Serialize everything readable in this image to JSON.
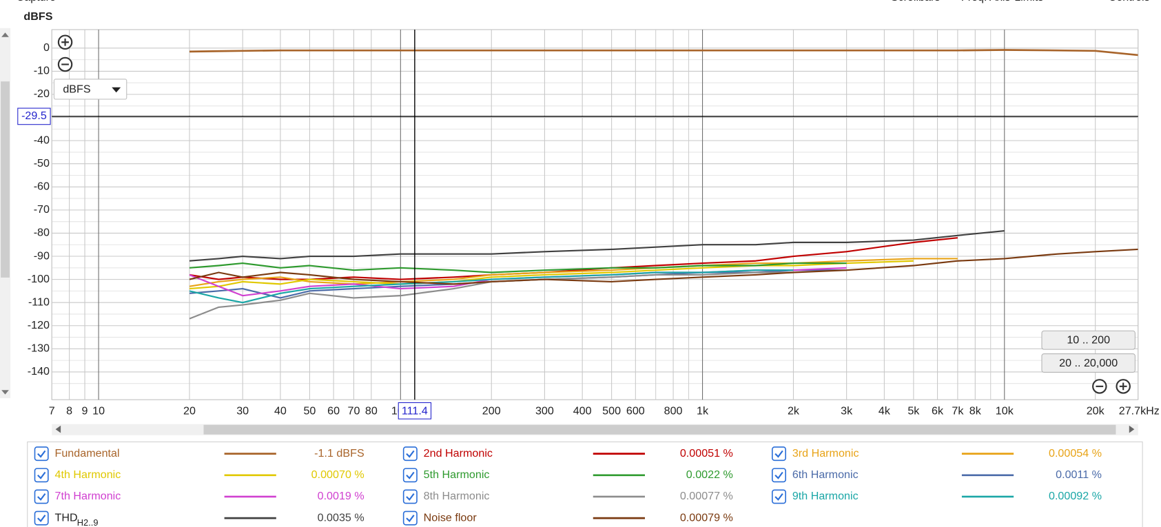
{
  "toolbar": [
    "Capture",
    "Scrollbars",
    "Freq. Axis",
    "Limits",
    "Controls"
  ],
  "controls": {
    "unit_selector": "dBFS",
    "range_buttons": [
      "10 .. 200",
      "20 .. 20,000"
    ]
  },
  "chart_data": {
    "type": "line",
    "y_label": "dBFS",
    "x_scale": "log",
    "grid": true,
    "xlim": [
      7,
      27700
    ],
    "ylim": [
      -152,
      8
    ],
    "xticks": [
      7,
      8,
      9,
      10,
      20,
      30,
      40,
      50,
      60,
      70,
      80,
      100,
      200,
      300,
      400,
      500,
      600,
      800,
      {
        "value": 1000,
        "label": "1k"
      },
      {
        "value": 2000,
        "label": "2k"
      },
      {
        "value": 3000,
        "label": "3k"
      },
      {
        "value": 4000,
        "label": "4k"
      },
      {
        "value": 5000,
        "label": "5k"
      },
      {
        "value": 6000,
        "label": "6k"
      },
      {
        "value": 7000,
        "label": "7k"
      },
      {
        "value": 8000,
        "label": "8k"
      },
      {
        "value": 10000,
        "label": "10k"
      },
      {
        "value": 20000,
        "label": "20k"
      },
      {
        "value": 27700,
        "label": "27.7kHz"
      }
    ],
    "xminor": [
      700,
      900,
      9000
    ],
    "yticks": [
      0,
      -10,
      -20,
      -30,
      -40,
      -50,
      -60,
      -70,
      -80,
      -90,
      -100,
      -110,
      -120,
      -130,
      -140
    ],
    "yminor": [
      -5,
      -15,
      -25,
      -35,
      -45,
      -55,
      -65,
      -75,
      -85,
      -95,
      -105,
      -115,
      -125,
      -135,
      -145
    ],
    "cursor": {
      "x": 111.4,
      "y": -29.5
    },
    "x": [
      20,
      25,
      30,
      40,
      50,
      70,
      100,
      150,
      200,
      300,
      500,
      700,
      1000,
      1500,
      2000,
      3000,
      5000,
      7000,
      10000,
      15000,
      20000,
      27700
    ],
    "series": [
      {
        "name": "Fundamental",
        "color": "#a8642a",
        "readout": "-1.1 dBFS",
        "values": [
          -1.5,
          -1.3,
          -1.2,
          -1,
          -1,
          -1,
          -1,
          -1,
          -1,
          -1,
          -1,
          -1,
          -1,
          -1,
          -1,
          -1,
          -1,
          -1,
          -0.8,
          -1,
          -1.2,
          -3
        ]
      },
      {
        "name": "2nd Harmonic",
        "color": "#c00000",
        "readout": "0.00051 %",
        "values": [
          -98,
          -100,
          -99,
          -100,
          -100,
          -99,
          -100,
          -99,
          -98,
          -97,
          -95,
          -94,
          -93,
          -92,
          -90,
          -88,
          -84,
          -82,
          null,
          null,
          null,
          null
        ]
      },
      {
        "name": "3rd Harmonic",
        "color": "#e8a317",
        "readout": "0.00054 %",
        "values": [
          -103,
          -101,
          -100,
          -99,
          -101,
          -102,
          -101,
          -100,
          -98,
          -97,
          -96,
          -95,
          -94,
          -93,
          -93,
          -92,
          -91,
          -91,
          null,
          null,
          null,
          null
        ]
      },
      {
        "name": "4th Harmonic",
        "color": "#e0c800",
        "readout": "0.00070 %",
        "values": [
          -104,
          -103,
          -101,
          -102,
          -100,
          -101,
          -102,
          -101,
          -99,
          -98,
          -97,
          -96,
          -95,
          -94,
          -94,
          -93,
          -92,
          null,
          null,
          null,
          null,
          null
        ]
      },
      {
        "name": "5th Harmonic",
        "color": "#2e9a2e",
        "readout": "0.0022 %",
        "values": [
          -95,
          -94,
          -93,
          -95,
          -94,
          -96,
          -95,
          -96,
          -97,
          -96,
          -95,
          -95,
          -94,
          -94,
          -93,
          -93,
          null,
          null,
          null,
          null,
          null,
          null
        ]
      },
      {
        "name": "6th Harmonic",
        "color": "#4a6aa8",
        "readout": "0.0011 %",
        "values": [
          -106,
          -105,
          -104,
          -108,
          -105,
          -104,
          -103,
          -102,
          -101,
          -100,
          -99,
          -98,
          -97,
          -97,
          -96,
          -96,
          null,
          null,
          null,
          null,
          null,
          null
        ]
      },
      {
        "name": "7th Harmonic",
        "color": "#d040d0",
        "readout": "0.0019 %",
        "values": [
          -98,
          -103,
          -107,
          -105,
          -103,
          -102,
          -104,
          -103,
          -100,
          -99,
          -98,
          -97,
          -97,
          -96,
          -96,
          -95,
          null,
          null,
          null,
          null,
          null,
          null
        ]
      },
      {
        "name": "8th Harmonic",
        "color": "#8c8c8c",
        "readout": "0.00077 %",
        "values": [
          -117,
          -112,
          -111,
          -109,
          -106,
          -108,
          -107,
          -104,
          -101,
          -100,
          -99,
          -98,
          -98,
          -97,
          -97,
          null,
          null,
          null,
          null,
          null,
          null,
          null
        ]
      },
      {
        "name": "9th Harmonic",
        "color": "#1aa6a6",
        "readout": "0.00092 %",
        "values": [
          -105,
          -108,
          -110,
          -106,
          -104,
          -103,
          -102,
          -101,
          -100,
          -99,
          -98,
          -97,
          -97,
          -96,
          -96,
          null,
          null,
          null,
          null,
          null,
          null,
          null
        ]
      },
      {
        "name": "THD",
        "name_subscript": "H2..9",
        "color": "#404040",
        "readout": "0.0035 %",
        "values": [
          -92,
          -91,
          -90,
          -91,
          -90,
          -90,
          -89,
          -89,
          -89,
          -88,
          -87,
          -86,
          -85,
          -85,
          -84,
          -84,
          -83,
          -81,
          -79,
          null,
          null,
          null
        ]
      },
      {
        "name": "Noise floor",
        "color": "#7a3a10",
        "readout": "0.00079 %",
        "values": [
          -100,
          -97,
          -99,
          -97,
          -98,
          -100,
          -101,
          -102,
          -101,
          -100,
          -101,
          -100,
          -99,
          -98,
          -97,
          -96,
          -94,
          -92,
          -91,
          -89,
          -88,
          -87
        ]
      }
    ]
  }
}
